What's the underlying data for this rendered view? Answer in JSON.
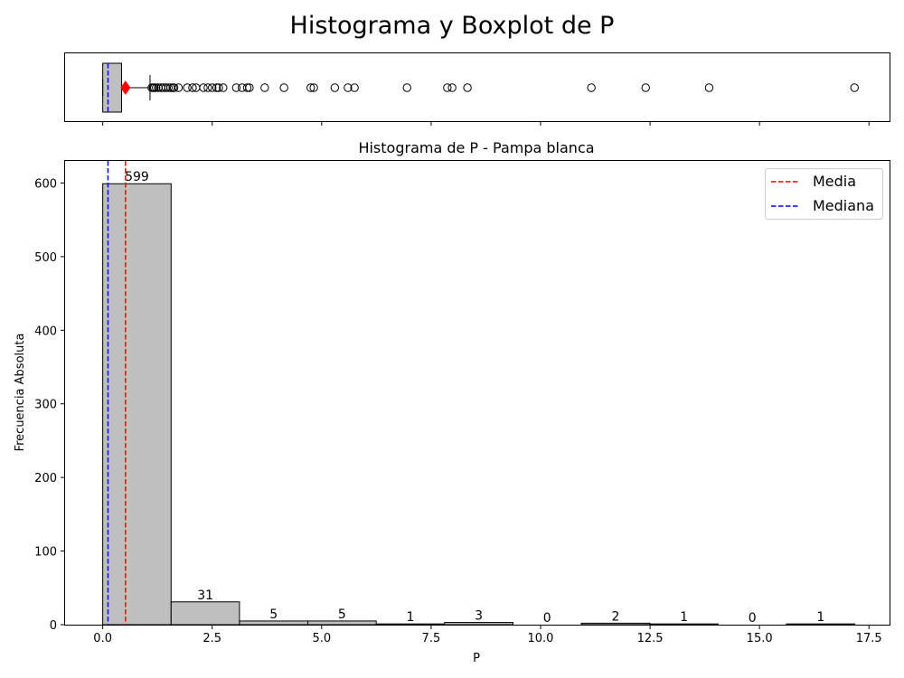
{
  "figure": {
    "suptitle": "Histograma y Boxplot de P"
  },
  "chart_data": [
    {
      "type": "boxplot",
      "name": "boxplot-P",
      "xlim": [
        -0.86,
        17.97
      ],
      "whisker_low": 0.0,
      "q1": 0.0,
      "median": 0.12,
      "q3": 0.43,
      "whisker_high": 1.08,
      "mean": 0.52,
      "outliers": [
        1.12,
        1.15,
        1.18,
        1.22,
        1.27,
        1.33,
        1.38,
        1.44,
        1.5,
        1.55,
        1.6,
        1.63,
        1.73,
        1.93,
        2.05,
        2.13,
        2.3,
        2.4,
        2.5,
        2.6,
        2.65,
        2.75,
        3.05,
        3.18,
        3.3,
        3.35,
        3.7,
        4.14,
        4.75,
        4.82,
        5.3,
        5.6,
        5.75,
        6.95,
        7.87,
        7.98,
        8.33,
        11.16,
        12.4,
        13.85,
        17.17
      ],
      "x_ticks": [
        0.0,
        2.5,
        5.0,
        7.5,
        10.0,
        12.5,
        15.0,
        17.5
      ],
      "colors": {
        "box": "#bfbfbf",
        "mean_marker": "#ff0000",
        "median_line": "#0000ff"
      }
    },
    {
      "type": "bar",
      "title": "Histograma de P - Pampa blanca",
      "xlabel": "P",
      "ylabel": "Frecuencia Absoluta",
      "xlim": [
        -0.86,
        17.97
      ],
      "ylim": [
        0,
        630
      ],
      "bin_edges": [
        0.0,
        1.5616,
        3.1232,
        4.6848,
        6.2464,
        7.808,
        9.3696,
        10.9312,
        12.4928,
        14.0544,
        15.616,
        17.1776
      ],
      "values": [
        599,
        31,
        5,
        5,
        1,
        3,
        0,
        2,
        1,
        0,
        1
      ],
      "bar_labels": [
        "599",
        "31",
        "5",
        "5",
        "1",
        "3",
        "0",
        "2",
        "1",
        "0",
        "1"
      ],
      "x_ticks": [
        0.0,
        2.5,
        5.0,
        7.5,
        10.0,
        12.5,
        15.0,
        17.5
      ],
      "x_tick_labels": [
        "0.0",
        "2.5",
        "5.0",
        "7.5",
        "10.0",
        "12.5",
        "15.0",
        "17.5"
      ],
      "y_ticks": [
        0,
        100,
        200,
        300,
        400,
        500,
        600
      ],
      "y_tick_labels": [
        "0",
        "100",
        "200",
        "300",
        "400",
        "500",
        "600"
      ],
      "mean": 0.52,
      "median": 0.12,
      "legend": {
        "placement": "top-right",
        "entries": [
          "Media",
          "Mediana"
        ]
      },
      "colors": {
        "bar": "#bfbfbf",
        "edge": "#000000",
        "mean_line": "#ff0000",
        "median_line": "#0000ff"
      },
      "grid": false
    }
  ]
}
